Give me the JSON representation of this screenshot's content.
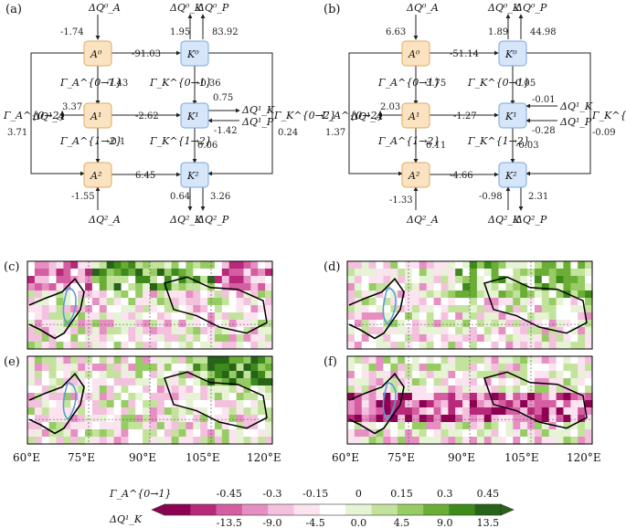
{
  "diagram_a": {
    "panel": "(a)",
    "top_inputs": {
      "qa0": "ΔQ⁰_A",
      "qk0": "ΔQ⁰_K",
      "qp0": "ΔQ⁰_P"
    },
    "vals": {
      "qa0": "-1.74",
      "qk0": "1.95",
      "qp0": "83.92",
      "c0": "-91.03",
      "g_a01": "7.43",
      "g_k01": "-0.36",
      "qa1": "3.37",
      "c1": "-2.62",
      "qk1": "0.75",
      "qp1": "-1.42",
      "g_a12": "-0.1",
      "g_k12": "0.06",
      "g_a02": "3.71",
      "g_k02": "0.24",
      "c2": "6.45",
      "qa2": "-1.55",
      "qk2": "0.64",
      "qp2": "3.26"
    },
    "boxes": {
      "a0": "A⁰",
      "a1": "A¹",
      "a2": "A²",
      "k0": "K⁰",
      "k1": "K¹",
      "k2": "K²"
    },
    "gammas": {
      "a01": "Γ_A^{0→1}",
      "k01": "Γ_K^{0→1}",
      "a12": "Γ_A^{1→2}",
      "k12": "Γ_K^{1→2}",
      "a02": "Γ_A^{0→2}",
      "k02": "Γ_K^{0→2}"
    },
    "side": {
      "qa1": "ΔQ¹_A",
      "qk1": "ΔQ¹_K",
      "qp1": "ΔQ¹_P"
    },
    "bottom": {
      "qa2": "ΔQ²_A",
      "qk2": "ΔQ²_K",
      "qp2": "ΔQ²_P"
    }
  },
  "diagram_b": {
    "panel": "(b)",
    "vals": {
      "qa0": "6.63",
      "qk0": "1.89",
      "qp0": "44.98",
      "c0": "-51.14",
      "g_a01": "3.75",
      "g_k01": "0.05",
      "qa1": "2.03",
      "c1": "-1.27",
      "qk1": "-0.01",
      "qp1": "-0.28",
      "g_a12": "0.11",
      "g_k12": "-0.03",
      "g_a02": "1.37",
      "g_k02": "-0.09",
      "c2": "-4.66",
      "qa2": "-1.33",
      "qk2": "-0.98",
      "qp2": "2.31"
    }
  },
  "maps": {
    "panels": [
      "(c)",
      "(d)",
      "(e)",
      "(f)"
    ],
    "xticks": [
      "60°E",
      "75°E",
      "90°E",
      "105°E",
      "120°E"
    ]
  },
  "colorbar": {
    "label_top": "Γ_A^{0→1}",
    "label_bottom": "ΔQ¹_K",
    "top_ticks": [
      "-0.45",
      "-0.3",
      "-0.15",
      "0",
      "0.15",
      "0.3",
      "0.45"
    ],
    "bottom_ticks": [
      "-13.5",
      "-9.0",
      "-4.5",
      "0.0",
      "4.5",
      "9.0",
      "13.5"
    ],
    "colors": [
      "#8e0152",
      "#b8297a",
      "#d55ea2",
      "#e78fc3",
      "#f3c1de",
      "#fbe3ef",
      "#ffffff",
      "#e6f3d4",
      "#c3e39c",
      "#97cc64",
      "#6aae36",
      "#3e8a1c",
      "#276419"
    ]
  }
}
